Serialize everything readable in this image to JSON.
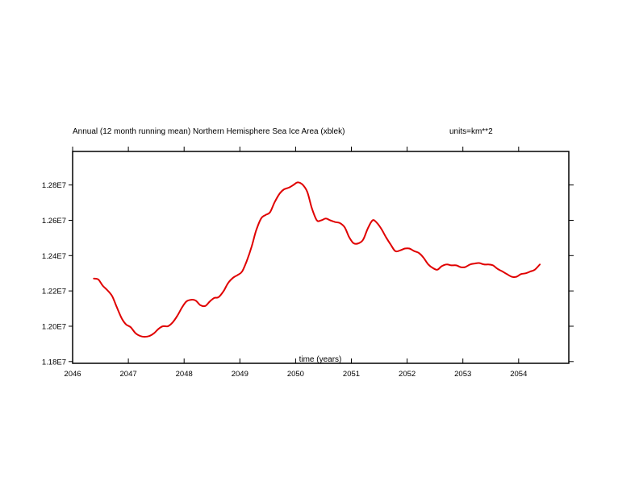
{
  "chart_data": {
    "type": "line",
    "title": "Annual (12 month running mean) Northern Hemisphere Sea Ice Area (xblek)",
    "units_label": "units=km**2",
    "xlabel": "time (years)",
    "ylabel": "",
    "xlim": [
      2046.0,
      2054.9
    ],
    "ylim": [
      11790000,
      12990000
    ],
    "x_ticks": [
      2046,
      2047,
      2048,
      2049,
      2050,
      2051,
      2052,
      2053,
      2054
    ],
    "x_tick_labels": [
      "2046",
      "2047",
      "2048",
      "2049",
      "2050",
      "2051",
      "2052",
      "2053",
      "2054"
    ],
    "y_ticks": [
      11800000,
      12000000,
      12200000,
      12400000,
      12600000,
      12800000
    ],
    "y_tick_labels": [
      "1.18E7",
      "1.20E7",
      "1.22E7",
      "1.24E7",
      "1.26E7",
      "1.28E7"
    ],
    "series": [
      {
        "name": "Northern Hemisphere Sea Ice Area",
        "color": "#e00000",
        "x": [
          2046.38,
          2046.46,
          2046.54,
          2046.62,
          2046.71,
          2046.79,
          2046.88,
          2046.96,
          2047.04,
          2047.13,
          2047.21,
          2047.29,
          2047.38,
          2047.46,
          2047.54,
          2047.62,
          2047.71,
          2047.79,
          2047.88,
          2047.96,
          2048.04,
          2048.13,
          2048.21,
          2048.29,
          2048.38,
          2048.46,
          2048.54,
          2048.62,
          2048.71,
          2048.79,
          2048.88,
          2048.96,
          2049.04,
          2049.13,
          2049.21,
          2049.29,
          2049.38,
          2049.46,
          2049.54,
          2049.62,
          2049.71,
          2049.79,
          2049.88,
          2049.96,
          2050.04,
          2050.13,
          2050.21,
          2050.29,
          2050.38,
          2050.46,
          2050.54,
          2050.62,
          2050.71,
          2050.79,
          2050.88,
          2050.96,
          2051.04,
          2051.13,
          2051.21,
          2051.29,
          2051.38,
          2051.46,
          2051.54,
          2051.62,
          2051.71,
          2051.79,
          2051.88,
          2051.96,
          2052.04,
          2052.13,
          2052.21,
          2052.29,
          2052.38,
          2052.46,
          2052.54,
          2052.62,
          2052.71,
          2052.79,
          2052.88,
          2052.96,
          2053.04,
          2053.13,
          2053.21,
          2053.29,
          2053.38,
          2053.46,
          2053.54,
          2053.62,
          2053.71,
          2053.79,
          2053.88,
          2053.96,
          2054.04,
          2054.13,
          2054.21,
          2054.29,
          2054.38
        ],
        "values": [
          12270000,
          12265000,
          12230000,
          12205000,
          12170000,
          12110000,
          12045000,
          12010000,
          11995000,
          11960000,
          11945000,
          11940000,
          11945000,
          11960000,
          11985000,
          12000000,
          12000000,
          12020000,
          12060000,
          12105000,
          12140000,
          12150000,
          12145000,
          12120000,
          12115000,
          12140000,
          12160000,
          12165000,
          12200000,
          12245000,
          12275000,
          12290000,
          12310000,
          12375000,
          12450000,
          12540000,
          12610000,
          12630000,
          12645000,
          12700000,
          12750000,
          12775000,
          12785000,
          12800000,
          12815000,
          12800000,
          12760000,
          12670000,
          12600000,
          12600000,
          12610000,
          12600000,
          12590000,
          12585000,
          12560000,
          12505000,
          12470000,
          12470000,
          12490000,
          12550000,
          12600000,
          12585000,
          12550000,
          12505000,
          12460000,
          12425000,
          12430000,
          12440000,
          12440000,
          12425000,
          12415000,
          12390000,
          12350000,
          12330000,
          12320000,
          12340000,
          12350000,
          12345000,
          12345000,
          12335000,
          12335000,
          12350000,
          12355000,
          12358000,
          12350000,
          12350000,
          12345000,
          12325000,
          12310000,
          12295000,
          12280000,
          12280000,
          12295000,
          12300000,
          12310000,
          12320000,
          12350000
        ]
      }
    ]
  }
}
